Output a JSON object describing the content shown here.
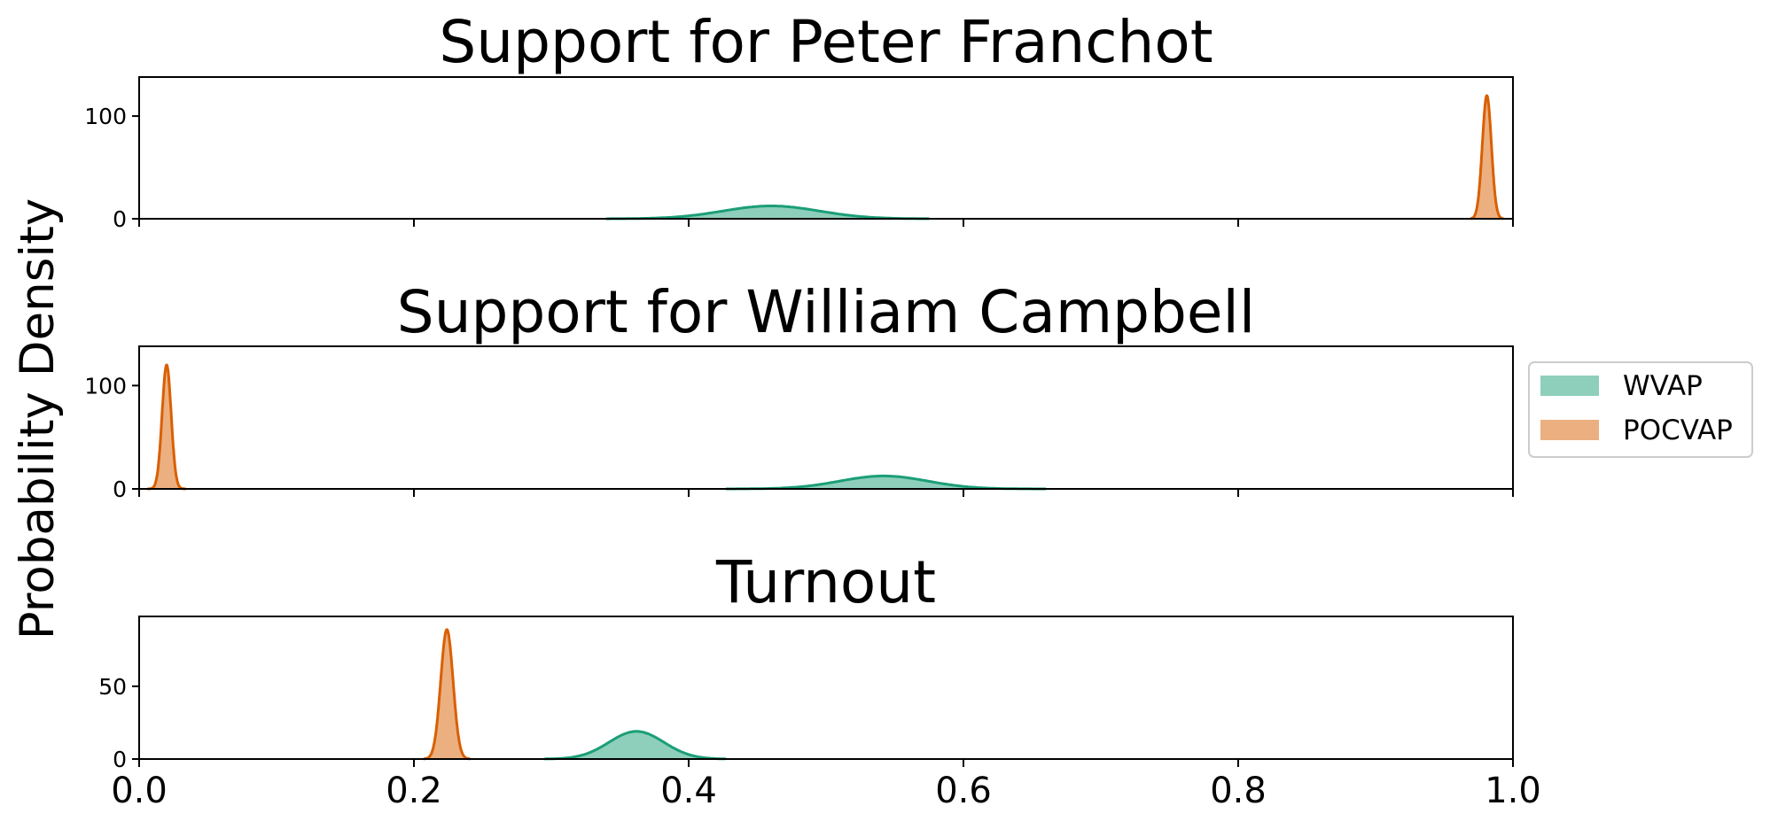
{
  "chart_data": {
    "type": "area",
    "ylabel": "Probability Density",
    "xlabel": "",
    "xlim": [
      0.0,
      1.0
    ],
    "xtick_labels": [
      "0.0",
      "0.2",
      "0.4",
      "0.6",
      "0.8",
      "1.0"
    ],
    "legend": {
      "placement": "right, outside middle panel",
      "entries": [
        {
          "name": "WVAP",
          "color": "#1b9e77",
          "fill": "#8dcfbb"
        },
        {
          "name": "POCVAP",
          "color": "#d95f02",
          "fill": "#ecaf80"
        }
      ]
    },
    "grid": false,
    "panels": [
      {
        "title": "Support for Peter Franchot",
        "ylim": [
          0,
          138
        ],
        "yticks": [
          0,
          100
        ],
        "show_xtick_labels": false,
        "series": [
          {
            "name": "WVAP",
            "mean": 0.46,
            "sd": 0.035,
            "x_range": [
              0.34,
              0.575
            ],
            "peak": 12.5
          },
          {
            "name": "POCVAP",
            "mean": 0.981,
            "sd": 0.0033,
            "x_range": [
              0.969,
              0.993
            ],
            "peak": 120
          }
        ]
      },
      {
        "title": "Support for William Campbell",
        "ylim": [
          0,
          138
        ],
        "yticks": [
          0,
          100
        ],
        "show_xtick_labels": false,
        "series": [
          {
            "name": "WVAP",
            "mean": 0.542,
            "sd": 0.032,
            "x_range": [
              0.427,
              0.66
            ],
            "peak": 12.5
          },
          {
            "name": "POCVAP",
            "mean": 0.02,
            "sd": 0.0033,
            "x_range": [
              0.006,
              0.034
            ],
            "peak": 120
          }
        ]
      },
      {
        "title": "Turnout",
        "ylim": [
          0,
          98
        ],
        "yticks": [
          0,
          50
        ],
        "show_xtick_labels": true,
        "series": [
          {
            "name": "WVAP",
            "mean": 0.362,
            "sd": 0.02,
            "x_range": [
              0.295,
              0.427
            ],
            "peak": 19
          },
          {
            "name": "POCVAP",
            "mean": 0.224,
            "sd": 0.0045,
            "x_range": [
              0.207,
              0.241
            ],
            "peak": 89
          }
        ]
      }
    ]
  }
}
